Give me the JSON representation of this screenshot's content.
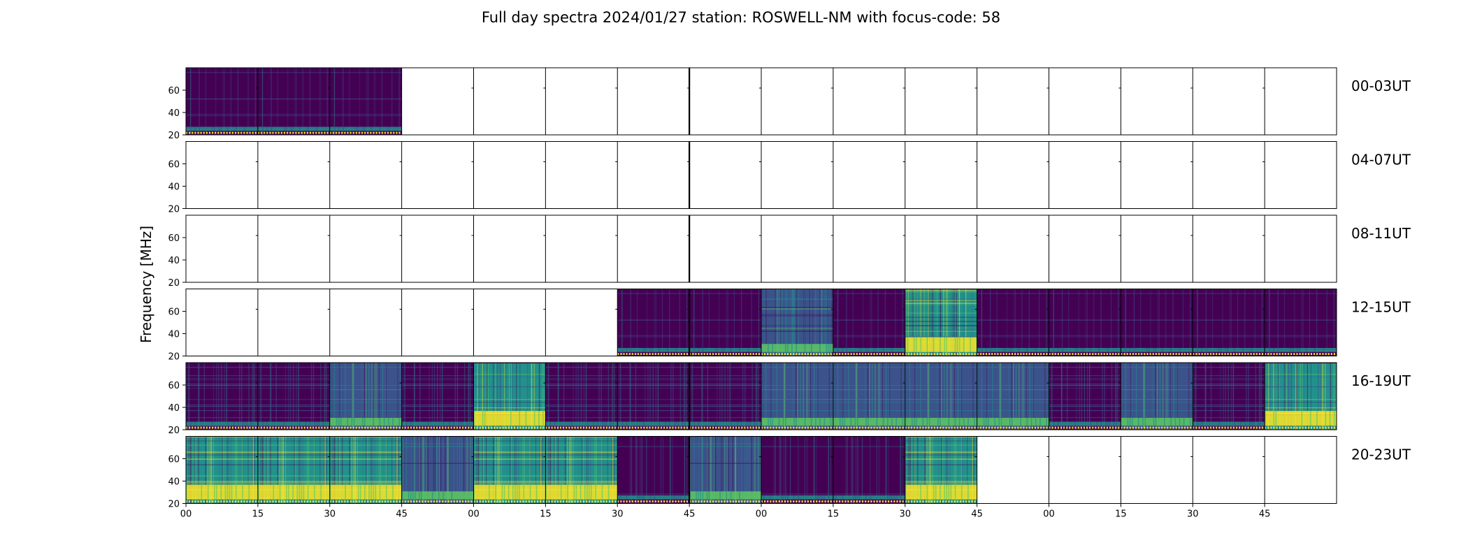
{
  "chart_data": {
    "type": "heatmap",
    "title": "Full day spectra 2024/01/27 station: ROSWELL-NM with focus-code: 58",
    "ylabel": "Frequency [MHz]",
    "xlabel": "",
    "ylim": [
      20,
      80
    ],
    "y_ticks": [
      "20",
      "40",
      "60"
    ],
    "x_tick_labels": [
      "00",
      "15",
      "30",
      "45",
      "00",
      "15",
      "30",
      "45",
      "00",
      "15",
      "30",
      "45",
      "00",
      "15",
      "30",
      "45"
    ],
    "colormap": [
      "#440154",
      "#3b528b",
      "#21918c",
      "#5ec962",
      "#fde725"
    ],
    "grid": false,
    "rows": [
      {
        "label": "00-03UT",
        "panels": [
          "dark",
          "dark",
          "dark",
          null,
          null,
          null,
          null,
          null,
          null,
          null,
          null,
          null,
          null,
          null,
          null,
          null
        ]
      },
      {
        "label": "04-07UT",
        "panels": [
          null,
          null,
          null,
          null,
          null,
          null,
          null,
          null,
          null,
          null,
          null,
          null,
          null,
          null,
          null,
          null
        ]
      },
      {
        "label": "08-11UT",
        "panels": [
          null,
          null,
          null,
          null,
          null,
          null,
          null,
          null,
          null,
          null,
          null,
          null,
          null,
          null,
          null,
          null
        ]
      },
      {
        "label": "12-15UT",
        "panels": [
          null,
          null,
          null,
          null,
          null,
          null,
          "dark",
          "dark",
          "mid",
          "dark",
          "bright",
          "dark",
          "dark",
          "dark",
          "dark",
          "dark"
        ]
      },
      {
        "label": "16-19UT",
        "panels": [
          "dark",
          "dark",
          "mid",
          "dark",
          "bright",
          "dark",
          "dark",
          "dark",
          "mid",
          "mid",
          "mid",
          "mid",
          "dark",
          "mid",
          "dark",
          "bright"
        ]
      },
      {
        "label": "20-23UT",
        "panels": [
          "bright",
          "bright",
          "bright",
          "mid",
          "bright",
          "bright",
          "dark",
          "mid",
          "dark",
          "dark",
          "bright",
          null,
          null,
          null,
          null,
          null
        ]
      }
    ]
  }
}
